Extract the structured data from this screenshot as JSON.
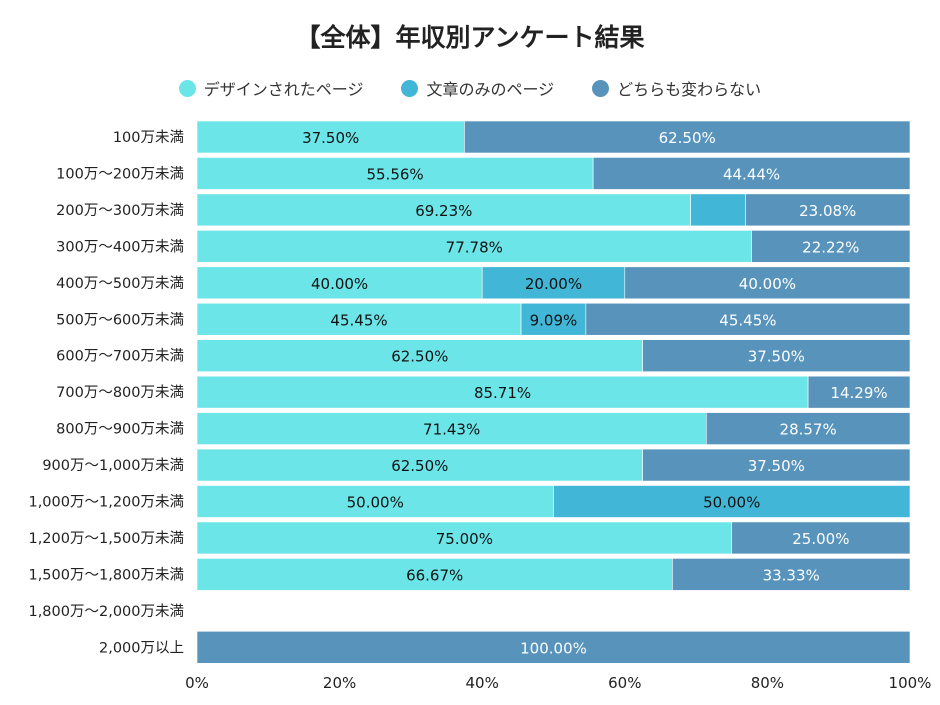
{
  "chart_data": {
    "type": "bar",
    "orientation": "horizontal",
    "stacked": "percent",
    "title": "【全体】年収別アンケート結果",
    "legend_position": "top",
    "categories": [
      "100万未満",
      "100万～200万未満",
      "200万～300万未満",
      "300万～400万未満",
      "400万～500万未満",
      "500万～600万未満",
      "600万～700万未満",
      "700万～800万未満",
      "800万～900万未満",
      "900万～1,000万未満",
      "1,000万～1,200万未満",
      "1,200万～1,500万未満",
      "1,500万～1,800万未満",
      "1,800万～2,000万未満",
      "2,000万以上"
    ],
    "series": [
      {
        "name": "デザインされたページ",
        "color": "#6ce5e8",
        "label_color": "#111111",
        "values": [
          37.5,
          55.56,
          69.23,
          77.78,
          40.0,
          45.45,
          62.5,
          85.71,
          71.43,
          62.5,
          50.0,
          75.0,
          66.67,
          null,
          0
        ]
      },
      {
        "name": "文章のみのページ",
        "color": "#41b6d6",
        "label_color": "#111111",
        "values": [
          0,
          0,
          7.69,
          0,
          20.0,
          9.09,
          0,
          0,
          0,
          0,
          50.0,
          0,
          0,
          null,
          0
        ]
      },
      {
        "name": "どちらも変わらない",
        "color": "#5793bb",
        "label_color": "#ffffff",
        "values": [
          62.5,
          44.44,
          23.08,
          22.22,
          40.0,
          45.45,
          37.5,
          14.29,
          28.57,
          37.5,
          0,
          25.0,
          33.33,
          null,
          100.0
        ]
      }
    ],
    "xlim": [
      0,
      100
    ],
    "x_ticks": [
      "0%",
      "20%",
      "40%",
      "60%",
      "80%",
      "100%"
    ],
    "grid": false
  }
}
